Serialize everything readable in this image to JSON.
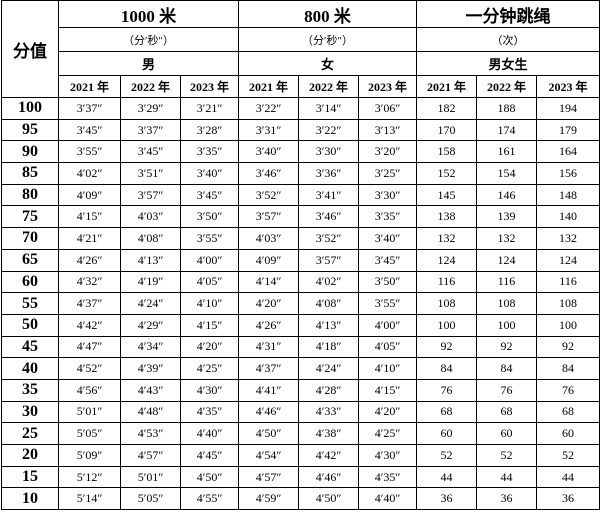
{
  "table": {
    "score_label": "分值",
    "groups": [
      {
        "name": "1000 米",
        "unit": "（分′秒″）",
        "gender": "男"
      },
      {
        "name": "800 米",
        "unit": "（分′秒″）",
        "gender": "女"
      },
      {
        "name": "一分钟跳绳",
        "unit": "（次）",
        "gender": "男女生"
      }
    ],
    "years": [
      "2021 年",
      "2022 年",
      "2023 年",
      "2021 年",
      "2022 年",
      "2023 年",
      "2021 年",
      "2022 年",
      "2023 年"
    ],
    "rows": [
      [
        100,
        "3′37″",
        "3′29″",
        "3′21″",
        "3′22″",
        "3′14″",
        "3′06″",
        182,
        188,
        194
      ],
      [
        95,
        "3′45″",
        "3′37″",
        "3′28″",
        "3′31″",
        "3′22″",
        "3′13″",
        170,
        174,
        179
      ],
      [
        90,
        "3′55″",
        "3′45″",
        "3′35″",
        "3′40″",
        "3′30″",
        "3′20″",
        158,
        161,
        164
      ],
      [
        85,
        "4′02″",
        "3′51″",
        "3′40″",
        "3′46″",
        "3′36″",
        "3′25″",
        152,
        154,
        156
      ],
      [
        80,
        "4′09″",
        "3′57″",
        "3′45″",
        "3′52″",
        "3′41″",
        "3′30″",
        145,
        146,
        148
      ],
      [
        75,
        "4′15″",
        "4′03″",
        "3′50″",
        "3′57″",
        "3′46″",
        "3′35″",
        138,
        139,
        140
      ],
      [
        70,
        "4′21″",
        "4′08″",
        "3′55″",
        "4′03″",
        "3′52″",
        "3′40″",
        132,
        132,
        132
      ],
      [
        65,
        "4′26″",
        "4′13″",
        "4′00″",
        "4′09″",
        "3′57″",
        "3′45″",
        124,
        124,
        124
      ],
      [
        60,
        "4′32″",
        "4′19″",
        "4′05″",
        "4′14″",
        "4′02″",
        "3′50″",
        116,
        116,
        116
      ],
      [
        55,
        "4′37″",
        "4′24″",
        "4′10″",
        "4′20″",
        "4′08″",
        "3′55″",
        108,
        108,
        108
      ],
      [
        50,
        "4′42″",
        "4′29″",
        "4′15″",
        "4′26″",
        "4′13″",
        "4′00″",
        100,
        100,
        100
      ],
      [
        45,
        "4′47″",
        "4′34″",
        "4′20″",
        "4′31″",
        "4′18″",
        "4′05″",
        92,
        92,
        92
      ],
      [
        40,
        "4′52″",
        "4′39″",
        "4′25″",
        "4′37″",
        "4′24″",
        "4′10″",
        84,
        84,
        84
      ],
      [
        35,
        "4′56″",
        "4′43″",
        "4′30″",
        "4′41″",
        "4′28″",
        "4′15″",
        76,
        76,
        76
      ],
      [
        30,
        "5′01″",
        "4′48″",
        "4′35″",
        "4′46″",
        "4′33″",
        "4′20″",
        68,
        68,
        68
      ],
      [
        25,
        "5′05″",
        "4′53″",
        "4′40″",
        "4′50″",
        "4′38″",
        "4′25″",
        60,
        60,
        60
      ],
      [
        20,
        "5′09″",
        "4′57″",
        "4′45″",
        "4′54″",
        "4′42″",
        "4′30″",
        52,
        52,
        52
      ],
      [
        15,
        "5′12″",
        "5′01″",
        "4′50″",
        "4′57″",
        "4′46″",
        "4′35″",
        44,
        44,
        44
      ],
      [
        10,
        "5′14″",
        "5′05″",
        "4′55″",
        "4′59″",
        "4′50″",
        "4′40″",
        36,
        36,
        36
      ]
    ]
  }
}
